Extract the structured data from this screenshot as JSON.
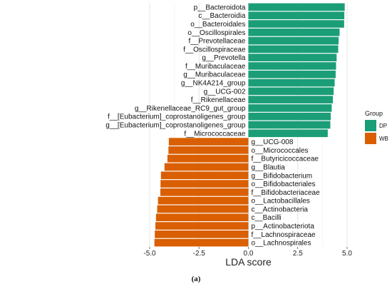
{
  "caption": "(a)",
  "chart_data": {
    "type": "bar",
    "orientation": "horizontal",
    "xlabel": "LDA score",
    "xlim": [
      -5.0,
      5.0
    ],
    "xticks": [
      -5.0,
      -2.5,
      0.0,
      2.5,
      5.0
    ],
    "xtick_labels": [
      "-5.0",
      "-2.5",
      "0.0",
      "2.5",
      "5.0"
    ],
    "grid": true,
    "legend": {
      "title": "Group",
      "placement": "right",
      "entries": [
        {
          "label": "DP",
          "color": "#1b9e77"
        },
        {
          "label": "WB",
          "color": "#d95f02"
        }
      ]
    },
    "categories": [
      "p__Bacteroidota",
      "c__Bacteroidia",
      "o__Bacteroidales",
      "o__Oscillospirales",
      "f__Prevotellaceae",
      "f__Oscillospiraceae",
      "g__Prevotella",
      "f__Muribaculaceae",
      "g__Muribaculaceae",
      "g__NK4A214_group",
      "g__UCG-002",
      "f__Rikenellaceae",
      "g__Rikenellaceae_RC9_gut_group",
      "f__[Eubacterium]_coprostanoligenes_group",
      "g__[Eubacterium]_coprostanoligenes_group",
      "f__Micrococcaceae",
      "g__UCG-008",
      "o__Micrococcales",
      "f__Butyricicoccaceae",
      "g__Blautia",
      "g__Bifidobacterium",
      "o__Bifidobacteriales",
      "f__Bifidobacteriaceae",
      "o__Lactobacillales",
      "c__Actinobacteria",
      "c__Bacilli",
      "p__Actinobacteriota",
      "f__Lachnospiraceae",
      "o__Lachnospirales"
    ],
    "values": [
      4.88,
      4.86,
      4.85,
      4.62,
      4.57,
      4.55,
      4.47,
      4.44,
      4.42,
      4.37,
      4.32,
      4.28,
      4.22,
      4.17,
      4.15,
      4.02,
      -4.03,
      -4.05,
      -4.1,
      -4.25,
      -4.43,
      -4.45,
      -4.46,
      -4.58,
      -4.62,
      -4.68,
      -4.71,
      -4.74,
      -4.76
    ],
    "groups": [
      "DP",
      "DP",
      "DP",
      "DP",
      "DP",
      "DP",
      "DP",
      "DP",
      "DP",
      "DP",
      "DP",
      "DP",
      "DP",
      "DP",
      "DP",
      "DP",
      "WB",
      "WB",
      "WB",
      "WB",
      "WB",
      "WB",
      "WB",
      "WB",
      "WB",
      "WB",
      "WB",
      "WB",
      "WB"
    ]
  }
}
